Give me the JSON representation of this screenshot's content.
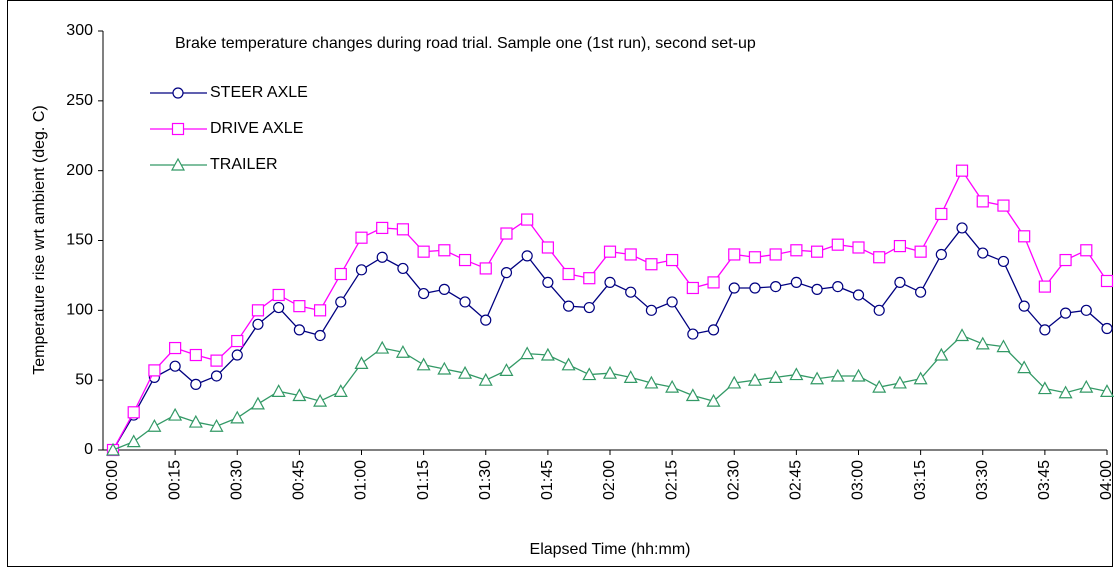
{
  "chart_data": {
    "type": "line",
    "title": "Brake temperature changes during road trial. Sample one (1st run), second set-up",
    "x_label": "Elapsed Time (hh:mm)",
    "y_label": "Temperature rise wrt ambient (deg. C)",
    "categories": [
      "00:00",
      null,
      null,
      "00:15",
      null,
      null,
      "00:30",
      null,
      null,
      "00:45",
      null,
      null,
      "01:00",
      null,
      null,
      "01:15",
      null,
      null,
      "01:30",
      null,
      null,
      "01:45",
      null,
      null,
      "02:00",
      null,
      null,
      "02:15",
      null,
      null,
      "02:30",
      null,
      null,
      "02:45",
      null,
      null,
      "03:00",
      null,
      null,
      "03:15",
      null,
      null,
      "03:30",
      null,
      null,
      "03:45",
      null,
      null,
      "04:00"
    ],
    "series": [
      {
        "name": "STEER AXLE",
        "color": "#000080",
        "marker": "circle",
        "values": [
          0,
          25,
          52,
          60,
          47,
          53,
          68,
          90,
          102,
          86,
          82,
          106,
          129,
          138,
          130,
          112,
          115,
          106,
          93,
          127,
          139,
          120,
          103,
          102,
          120,
          113,
          100,
          106,
          83,
          86,
          116,
          116,
          117,
          120,
          115,
          117,
          111,
          100,
          120,
          113,
          140,
          159,
          141,
          135,
          103,
          86,
          98,
          100,
          87
        ]
      },
      {
        "name": "DRIVE AXLE",
        "color": "#ff00ff",
        "marker": "square",
        "values": [
          0,
          27,
          57,
          73,
          68,
          64,
          78,
          100,
          111,
          103,
          100,
          126,
          152,
          159,
          158,
          142,
          143,
          136,
          130,
          155,
          165,
          145,
          126,
          123,
          142,
          140,
          133,
          136,
          116,
          120,
          140,
          138,
          140,
          143,
          142,
          147,
          145,
          138,
          146,
          142,
          169,
          200,
          178,
          175,
          153,
          117,
          136,
          143,
          121
        ]
      },
      {
        "name": "TRAILER",
        "color": "#339966",
        "marker": "triangle",
        "values": [
          0,
          6,
          17,
          25,
          20,
          17,
          23,
          33,
          42,
          39,
          35,
          42,
          62,
          73,
          70,
          61,
          58,
          55,
          50,
          57,
          69,
          68,
          61,
          54,
          55,
          52,
          48,
          45,
          39,
          35,
          48,
          50,
          52,
          54,
          51,
          53,
          53,
          45,
          48,
          51,
          68,
          82,
          76,
          74,
          59,
          44,
          41,
          45,
          42
        ]
      }
    ],
    "ylim": [
      0,
      300
    ],
    "yticks": [
      0,
      50,
      100,
      150,
      200,
      250,
      300
    ],
    "grid": false,
    "legend": "upper-left"
  }
}
